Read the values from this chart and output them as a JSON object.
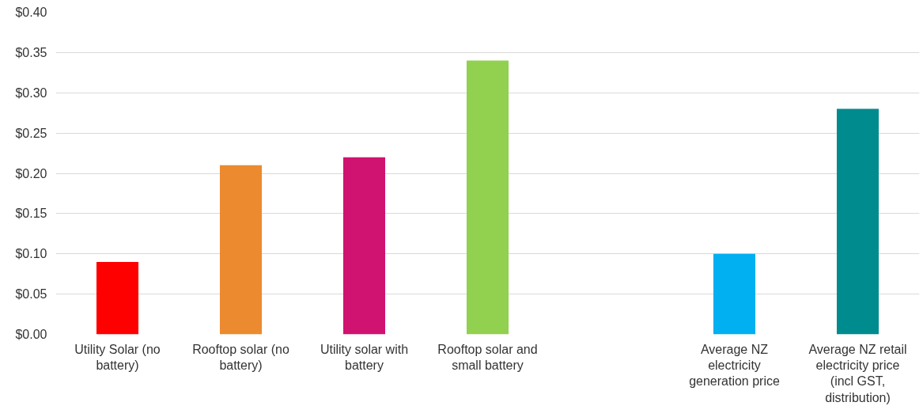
{
  "chart_data": {
    "type": "bar",
    "categories": [
      "Utility Solar (no battery)",
      "Rooftop solar (no battery)",
      "Utility solar with battery",
      "Rooftop solar and small battery",
      null,
      "Average NZ electricity generation price",
      "Average NZ retail electricity price (incl GST, distribution)"
    ],
    "values": [
      0.09,
      0.21,
      0.22,
      0.34,
      null,
      0.1,
      0.28
    ],
    "colors": [
      "#fe0000",
      "#ec8a2f",
      "#d01270",
      "#92d04f",
      "#ffffff",
      "#00b0f0",
      "#008b8f"
    ],
    "ylim": [
      0,
      0.4
    ],
    "yticks": [
      {
        "value": 0,
        "label": "$0.00"
      },
      {
        "value": 0.05,
        "label": "$0.05"
      },
      {
        "value": 0.1,
        "label": "$0.10"
      },
      {
        "value": 0.15,
        "label": "$0.15"
      },
      {
        "value": 0.2,
        "label": "$0.20"
      },
      {
        "value": 0.25,
        "label": "$0.25"
      },
      {
        "value": 0.3,
        "label": "$0.30"
      },
      {
        "value": 0.35,
        "label": "$0.35"
      },
      {
        "value": 0.4,
        "label": "$0.40"
      }
    ],
    "grid": "y"
  }
}
